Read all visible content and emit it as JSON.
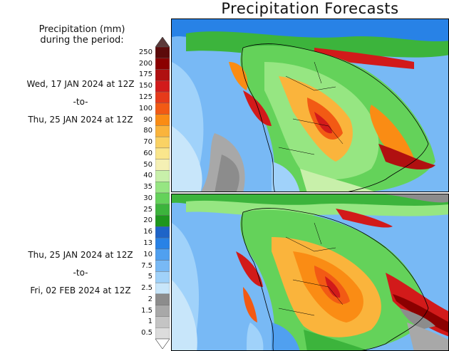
{
  "title": "Precipitation Forecasts",
  "legend": {
    "heading_line1": "Precipitation (mm)",
    "heading_line2": "during the period:"
  },
  "periods": [
    {
      "start": "Wed, 17 JAN 2024 at 12Z",
      "sep": "-to-",
      "end": "Thu, 25 JAN 2024 at 12Z"
    },
    {
      "start": "Thu, 25 JAN 2024 at 12Z",
      "sep": "-to-",
      "end": "Fri, 02 FEB 2024 at 12Z"
    }
  ],
  "colorbar": {
    "labels": [
      "250",
      "200",
      "175",
      "150",
      "125",
      "100",
      "90",
      "80",
      "70",
      "60",
      "50",
      "40",
      "35",
      "30",
      "25",
      "20",
      "16",
      "13",
      "10",
      "7.5",
      "5",
      "2.5",
      "2",
      "1.5",
      "1",
      "0.5"
    ],
    "colors": [
      "#5c0a0a",
      "#8b0000",
      "#b01010",
      "#d21a1a",
      "#e63a1a",
      "#f25a14",
      "#fa8c14",
      "#fab43c",
      "#fad264",
      "#fae68c",
      "#f5f0b4",
      "#c8f0aa",
      "#96e682",
      "#64d25a",
      "#3cb43c",
      "#1e961e",
      "#1e64c8",
      "#2882e6",
      "#50a0f0",
      "#78b9f5",
      "#a0d2fa",
      "#c8e6fa",
      "#8c8c8c",
      "#a8a8a8",
      "#c4c4c4",
      "#dcdcdc"
    ]
  }
}
